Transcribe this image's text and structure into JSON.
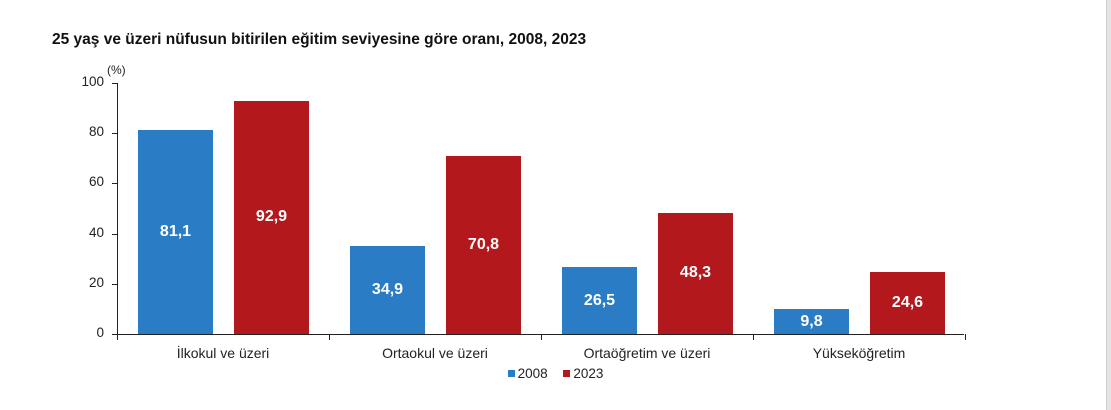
{
  "chart_data": {
    "type": "bar",
    "title": "25 yaş ve üzeri nüfusun bitirilen eğitim seviyesine göre oranı, 2008, 2023",
    "unit_label": "(%)",
    "xlabel": "",
    "ylabel": "(%)",
    "ylim": [
      0,
      100
    ],
    "yticks": [
      0,
      20,
      40,
      60,
      80,
      100
    ],
    "categories": [
      "İlkokul ve üzeri",
      "Ortaokul ve üzeri",
      "Ortaöğretim ve üzeri",
      "Yükseköğretim"
    ],
    "series": [
      {
        "name": "2008",
        "color": "#2a7dc4",
        "values": [
          81.1,
          34.9,
          26.5,
          9.8
        ],
        "labels": [
          "81,1",
          "34,9",
          "26,5",
          "9,8"
        ]
      },
      {
        "name": "2023",
        "color": "#b3191c",
        "values": [
          92.9,
          70.8,
          48.3,
          24.6
        ],
        "labels": [
          "92,9",
          "70,8",
          "48,3",
          "24,6"
        ]
      }
    ],
    "grid": false,
    "legend_position": "bottom"
  }
}
